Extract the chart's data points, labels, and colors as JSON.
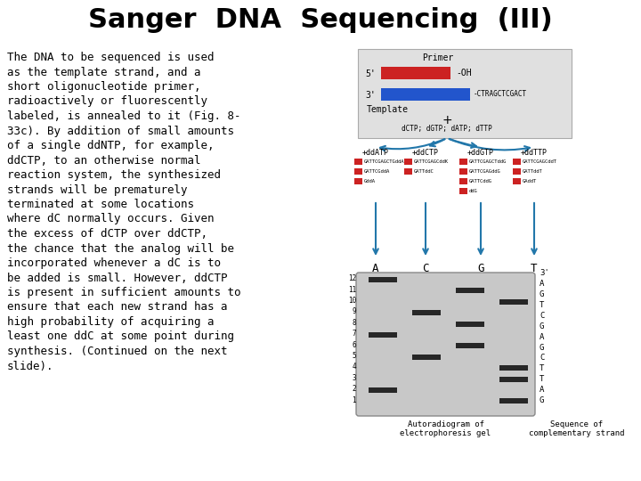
{
  "title": "Sanger  DNA  Sequencing  (III)",
  "title_fontsize": 22,
  "title_font": "DejaVu Sans",
  "body_text": "The DNA to be sequenced is used\nas the template strand, and a\nshort oligonucleotide primer,\nradioactively or fluorescently\nlabeled, is annealed to it (Fig. 8-\n33c). By addition of small amounts\nof a single ddNTP, for example,\nddCTP, to an otherwise normal\nreaction system, the synthesized\nstrands will be prematurely\nterminated at some locations\nwhere dC normally occurs. Given\nthe excess of dCTP over ddCTP,\nthe chance that the analog will be\nincorporated whenever a dC is to\nbe added is small. However, ddCTP\nis present in sufficient amounts to\nensure that each new strand has a\nhigh probability of acquiring a\nleast one ddC at some point during\nsynthesis. (Continued on the next\nslide).",
  "body_font": "monospace",
  "body_fontsize": 9.0,
  "bg_color": "#ffffff",
  "primer_color": "#cc2222",
  "template_color": "#2255cc",
  "arrow_color": "#2277aa",
  "red_box_color": "#cc2222",
  "lane_labels": [
    "A",
    "C",
    "G",
    "T"
  ],
  "autorad_label": "Autoradiogram of\nelectrophoresis gel",
  "seq_strand_label": "Sequence of\ncomplementary strand",
  "reaction_labels": [
    "+ddATP",
    "+ddCTP",
    "+ddGTP",
    "+ddTTP"
  ],
  "num_labels": [
    "12",
    "11",
    "10",
    "9",
    "8",
    "7",
    "6",
    "5",
    "4",
    "3",
    "2",
    "1"
  ],
  "seq_chars": [
    "3'",
    "A",
    "G",
    "T",
    "C",
    "G",
    "A",
    "G",
    "C",
    "T",
    "T",
    "A",
    "G"
  ],
  "strand_data": [
    [
      "GATTCGAGCTGddA",
      "GATTCGddA",
      "GddA"
    ],
    [
      "GATTCGAGCddK",
      "GATTddC"
    ],
    [
      "GATTCGAGCTddG",
      "GATTCGAGddG",
      "GATTCddG",
      "ddG"
    ],
    [
      "GATTCGAGCddT",
      "GATTddT",
      "GAddT"
    ]
  ],
  "band_data": [
    [
      0,
      12
    ],
    [
      0,
      7
    ],
    [
      0,
      2
    ],
    [
      1,
      9
    ],
    [
      1,
      5
    ],
    [
      2,
      11
    ],
    [
      2,
      8
    ],
    [
      2,
      6
    ],
    [
      3,
      10
    ],
    [
      3,
      4
    ],
    [
      3,
      3
    ],
    [
      3,
      1
    ]
  ]
}
